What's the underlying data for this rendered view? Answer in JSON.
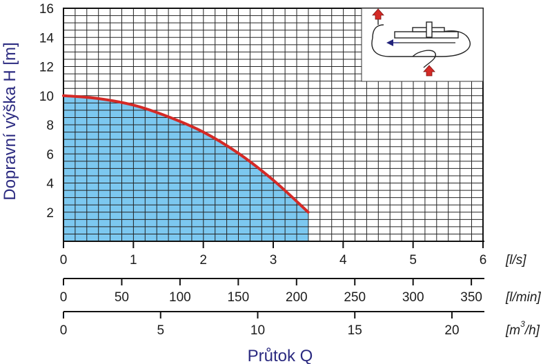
{
  "chart_data": {
    "type": "area",
    "title": "",
    "ylabel": "Dopravní výška H [m]",
    "xlabel": "Průtok Q",
    "ylim": [
      0,
      16
    ],
    "y_ticks": [
      "2",
      "4",
      "6",
      "8",
      "10",
      "12",
      "14",
      "16"
    ],
    "grid": true,
    "colors": {
      "fill": "#7cc8f0",
      "curve": "#d42a26",
      "axis_title": "#2b2a80",
      "grid": "#222222"
    },
    "x_axes": [
      {
        "unit": "[l/s]",
        "range": [
          0,
          6
        ],
        "ticks": [
          "0",
          "1",
          "2",
          "3",
          "4",
          "5",
          "6"
        ]
      },
      {
        "unit": "[l/min]",
        "range": [
          0,
          360
        ],
        "ticks": [
          "0",
          "50",
          "100",
          "150",
          "200",
          "250",
          "300",
          "350"
        ]
      },
      {
        "unit_main": "[m",
        "unit_sup": "3",
        "unit_tail": "/h]",
        "range": [
          0,
          21.6
        ],
        "ticks": [
          "0",
          "5",
          "10",
          "15",
          "20"
        ]
      }
    ],
    "series": [
      {
        "x": [
          0,
          0.5,
          1.0,
          1.5,
          2.0,
          2.5,
          3.0,
          3.5
        ],
        "y": [
          10.0,
          9.8,
          9.35,
          8.55,
          7.5,
          6.05,
          4.2,
          2.0
        ]
      }
    ],
    "inset_icon": "pump-flow-diagram-icon"
  }
}
